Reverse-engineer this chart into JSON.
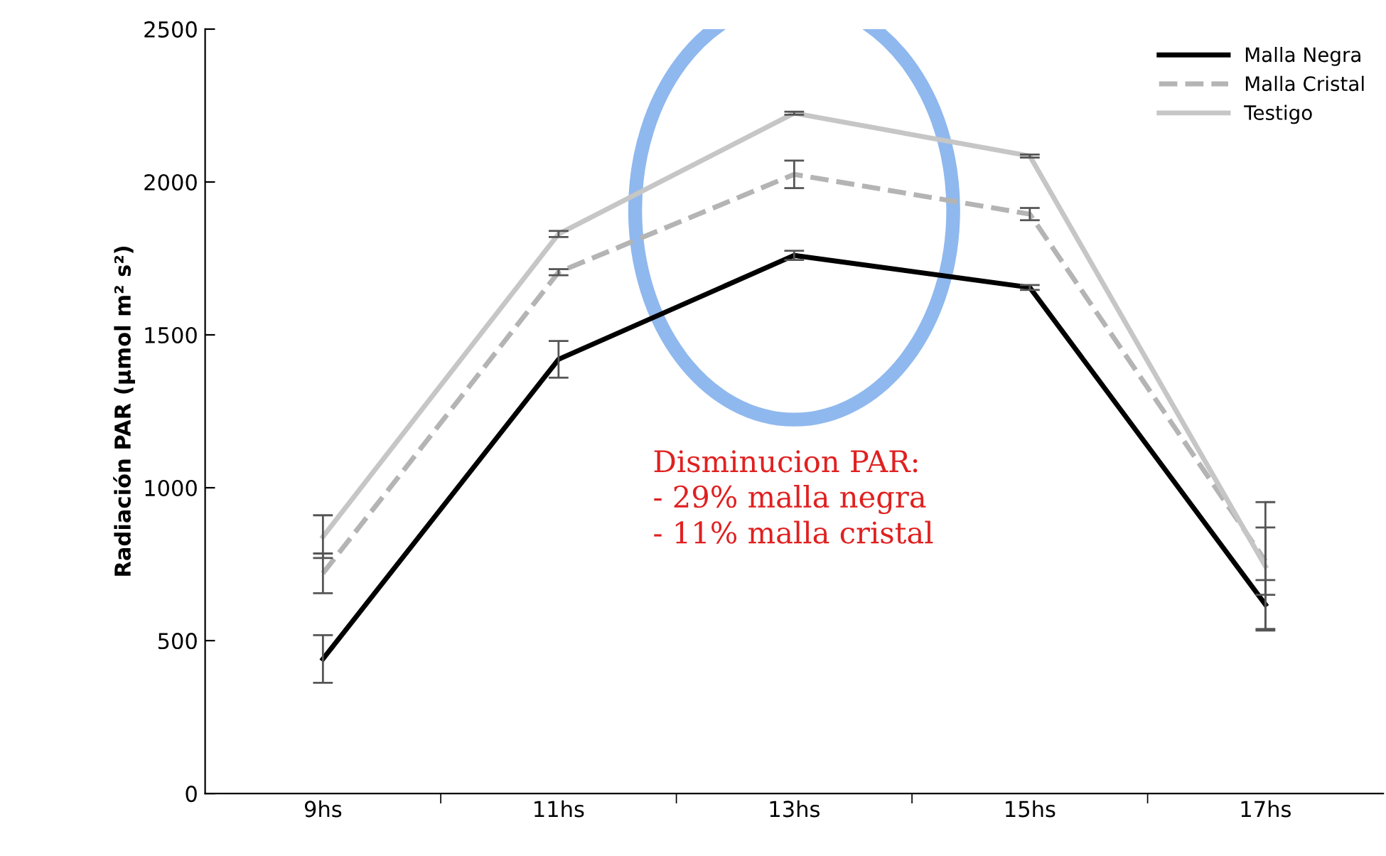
{
  "chart_data": {
    "type": "line",
    "ylabel": "Radiación PAR (µmol m² s²)",
    "categories": [
      "9hs",
      "11hs",
      "13hs",
      "15hs",
      "17hs"
    ],
    "series": [
      {
        "name": "Malla Negra",
        "color": "#000000",
        "line_style": "solid",
        "values": [
          440,
          1420,
          1760,
          1655,
          618
        ],
        "errors": [
          78,
          60,
          15,
          8,
          80
        ]
      },
      {
        "name": "Malla Cristal",
        "color": "#b4b4b4",
        "line_style": "dashed",
        "values": [
          720,
          1705,
          2025,
          1895,
          760
        ],
        "errors": [
          65,
          10,
          45,
          20,
          110
        ]
      },
      {
        "name": "Testigo",
        "color": "#c6c6c6",
        "line_style": "solid",
        "values": [
          840,
          1830,
          2225,
          2085,
          743
        ],
        "errors": [
          70,
          10,
          5,
          5,
          210
        ]
      }
    ],
    "ylim": [
      0,
      2500
    ],
    "yticks": [
      0,
      500,
      1000,
      1500,
      2000,
      2500
    ],
    "grid": false,
    "legend": "top right",
    "marker": "none",
    "annotations": [
      "Disminucion PAR:\n- 29% malla negra\n- 11% malla cristal"
    ]
  }
}
